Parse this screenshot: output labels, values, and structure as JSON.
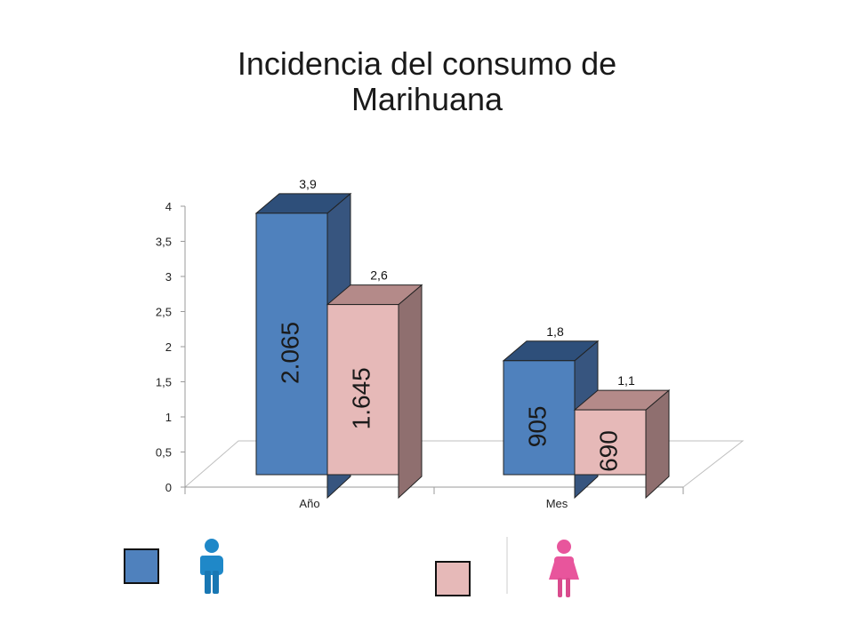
{
  "chart_data": {
    "type": "bar",
    "title_lines": [
      "Incidencia del consumo de",
      "Marihuana"
    ],
    "categories": [
      "Año",
      "Mes"
    ],
    "ylim": [
      0,
      4
    ],
    "yticks": [
      "0",
      "0,5",
      "1",
      "1,5",
      "2",
      "2,5",
      "3",
      "3,5",
      "4"
    ],
    "ytick_values": [
      0,
      0.5,
      1,
      1.5,
      2,
      2.5,
      3,
      3.5,
      4
    ],
    "series": [
      {
        "values": [
          3.9,
          1.8
        ],
        "value_labels": [
          "3,9",
          "1,8"
        ],
        "inner_labels": [
          "2.065",
          "905"
        ],
        "color_front": "#4f81bd",
        "color_top": "#2e4f7a",
        "color_side": "#37557f"
      },
      {
        "values": [
          2.6,
          1.1
        ],
        "value_labels": [
          "2,6",
          "1,1"
        ],
        "inner_labels": [
          "1.645",
          "690"
        ],
        "color_front": "#e6b9b8",
        "color_top": "#b48a89",
        "color_side": "#8f6f6f"
      }
    ],
    "grid": false,
    "legend": "bottom",
    "legend_items": [
      {
        "icon": "male-person-icon",
        "swatch_color": "#4f81bd",
        "icon_color": "#1f88c8"
      },
      {
        "icon": "female-person-icon",
        "swatch_color": "#e6b9b8",
        "icon_color": "#e8559c"
      }
    ]
  }
}
